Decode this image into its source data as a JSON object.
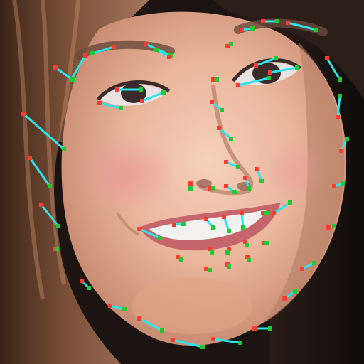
{
  "image": {
    "subject": "face-with-landmark-overlay",
    "colors": {
      "hair_dark": "#3a2418",
      "hair_mid": "#6b4330",
      "hair_light": "#9a6b4c",
      "skin_light": "#f1c6ae",
      "skin_mid": "#e3a68b",
      "skin_shadow": "#c98d73",
      "cheek_blush": "#e99b95",
      "lip": "#c7656d",
      "teeth": "#f2f1ef",
      "brow": "#6a4a3b",
      "eye_dark": "#3a2a2a",
      "eye_white": "#e8e2e2",
      "background_right": "#120e0c",
      "landmark_line": "#27e6ee",
      "landmark_point_a": "#ff3b30",
      "landmark_point_b": "#1ec933"
    }
  }
}
